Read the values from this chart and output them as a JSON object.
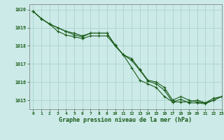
{
  "background_color": "#cceae7",
  "grid_color": "#aad4d0",
  "line_color": "#1a5c1a",
  "title": "Graphe pression niveau de la mer (hPa)",
  "xlim": [
    -0.5,
    23
  ],
  "ylim": [
    1014.5,
    1020.3
  ],
  "yticks": [
    1015,
    1016,
    1017,
    1018,
    1019,
    1020
  ],
  "xticks": [
    0,
    1,
    2,
    3,
    4,
    5,
    6,
    7,
    8,
    9,
    10,
    11,
    12,
    13,
    14,
    15,
    16,
    17,
    18,
    19,
    20,
    21,
    22,
    23
  ],
  "series": [
    [
      1019.9,
      1019.5,
      1019.2,
      1019.0,
      1018.8,
      1018.7,
      1018.55,
      1018.7,
      1018.7,
      1018.7,
      1018.0,
      1017.5,
      1017.3,
      1016.7,
      1016.1,
      1016.0,
      1015.7,
      1015.0,
      1015.2,
      1015.0,
      1014.9,
      1014.85,
      1015.0,
      1015.2
    ],
    [
      1019.9,
      1019.5,
      1019.2,
      1018.8,
      1018.6,
      1018.5,
      1018.4,
      1018.55,
      1018.55,
      1018.55,
      1018.0,
      1017.5,
      1016.8,
      1016.1,
      1015.9,
      1015.7,
      1015.2,
      1014.9,
      1014.9,
      1014.9,
      1015.0,
      1014.85,
      1015.1,
      1015.2
    ],
    [
      1019.9,
      1019.5,
      1019.2,
      1019.0,
      1018.8,
      1018.6,
      1018.5,
      1018.7,
      1018.7,
      1018.7,
      1018.05,
      1017.5,
      1017.2,
      1016.65,
      1016.05,
      1015.9,
      1015.55,
      1014.9,
      1015.05,
      1014.85,
      1014.85,
      1014.8,
      1015.0,
      1015.2
    ]
  ]
}
